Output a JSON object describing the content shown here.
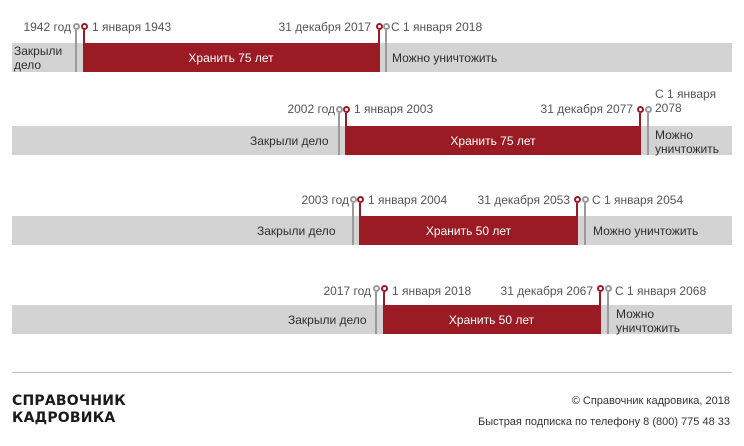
{
  "timelines": [
    {
      "closed_label": "Закрыли дело",
      "store_label": "Хранить 75 лет",
      "destroy_label": "Можно уничтожить",
      "markers": [
        "1942 год",
        "1 января 1943",
        "31 декабря 2017",
        "С 1 января 2018"
      ]
    },
    {
      "closed_label": "Закрыли дело",
      "store_label": "Хранить 75 лет",
      "destroy_label": "Можно уничтожить",
      "markers": [
        "2002 год",
        "1 января 2003",
        "31 декабря 2077",
        "С 1 января 2078"
      ]
    },
    {
      "closed_label": "Закрыли дело",
      "store_label": "Хранить 50 лет",
      "destroy_label": "Можно уничтожить",
      "markers": [
        "2003 год",
        "1 января 2004",
        "31 декабря 2053",
        "С 1 января 2054"
      ]
    },
    {
      "closed_label": "Закрыли дело",
      "store_label": "Хранить 50 лет",
      "destroy_label": "Можно уничтожить",
      "markers": [
        "2017 год",
        "1 января 2018",
        "31 декабря 2067",
        "С 1 января 2068"
      ]
    }
  ],
  "footer": {
    "brand_line1": "СПРАВОЧНИК",
    "brand_line2": "КАДРОВИКА",
    "copyright": "© Справочник кадровика, 2018",
    "subscription": "Быстрая подписка по телефону 8 (800) 775 48 33"
  },
  "colors": {
    "store_bar": "#9b1b24",
    "background_bar": "#d3d3d3",
    "marker_grey": "#9a9a9a"
  }
}
